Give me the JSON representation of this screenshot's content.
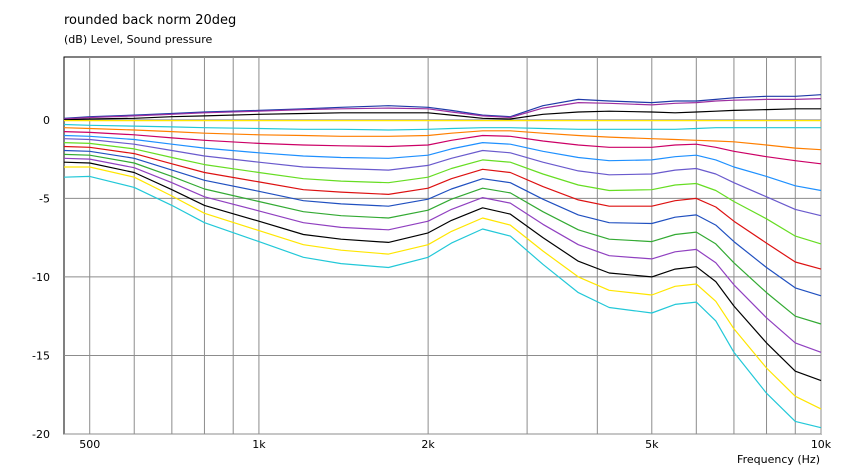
{
  "chart_data": {
    "type": "line",
    "title": "rounded back norm 20deg",
    "ylabel": "(dB)  Level, Sound pressure",
    "xlabel": "Frequency  (Hz)",
    "x_scale": "log",
    "xlim": [
      450,
      10000
    ],
    "ylim": [
      -20,
      4
    ],
    "x_ticks": [
      {
        "value": 500,
        "label": "500"
      },
      {
        "value": 1000,
        "label": "1k"
      },
      {
        "value": 2000,
        "label": "2k"
      },
      {
        "value": 5000,
        "label": "5k"
      },
      {
        "value": 10000,
        "label": "10k"
      }
    ],
    "y_ticks": [
      {
        "value": 0,
        "label": "0"
      },
      {
        "value": -5,
        "label": "-5"
      },
      {
        "value": -10,
        "label": "-10"
      },
      {
        "value": -15,
        "label": "-15"
      },
      {
        "value": -20,
        "label": "-20"
      }
    ],
    "x_grid": [
      500,
      600,
      700,
      800,
      900,
      1000,
      2000,
      3000,
      4000,
      5000,
      6000,
      7000,
      8000,
      9000,
      10000
    ],
    "grid": true,
    "x": [
      450,
      500,
      600,
      700,
      800,
      1000,
      1200,
      1400,
      1700,
      2000,
      2200,
      2500,
      2800,
      3200,
      3700,
      4200,
      5000,
      5500,
      6000,
      6500,
      7000,
      8000,
      9000,
      10000
    ],
    "series": [
      {
        "color": "#1f3aa8",
        "values": [
          0.1,
          0.2,
          0.3,
          0.4,
          0.5,
          0.6,
          0.7,
          0.8,
          0.9,
          0.8,
          0.6,
          0.3,
          0.2,
          0.9,
          1.3,
          1.2,
          1.1,
          1.2,
          1.2,
          1.3,
          1.4,
          1.5,
          1.5,
          1.6
        ]
      },
      {
        "color": "#9c2fa0",
        "values": [
          0.05,
          0.15,
          0.25,
          0.35,
          0.45,
          0.55,
          0.65,
          0.7,
          0.75,
          0.7,
          0.5,
          0.25,
          0.15,
          0.75,
          1.1,
          1.05,
          0.95,
          1.05,
          1.1,
          1.2,
          1.25,
          1.3,
          1.3,
          1.35
        ]
      },
      {
        "color": "#000000",
        "values": [
          0.0,
          0.05,
          0.1,
          0.2,
          0.25,
          0.35,
          0.4,
          0.45,
          0.45,
          0.45,
          0.3,
          0.1,
          0.05,
          0.35,
          0.5,
          0.55,
          0.5,
          0.45,
          0.5,
          0.55,
          0.6,
          0.65,
          0.7,
          0.7
        ]
      },
      {
        "color": "#ffe600",
        "values": [
          -0.05,
          -0.05,
          -0.05,
          -0.05,
          -0.05,
          -0.05,
          -0.05,
          -0.05,
          -0.05,
          -0.05,
          -0.05,
          -0.05,
          -0.05,
          -0.05,
          -0.05,
          -0.05,
          -0.05,
          -0.05,
          -0.05,
          -0.05,
          -0.05,
          -0.05,
          -0.05,
          -0.05
        ]
      },
      {
        "color": "#22c8d8",
        "values": [
          -0.3,
          -0.35,
          -0.4,
          -0.45,
          -0.5,
          -0.55,
          -0.6,
          -0.6,
          -0.65,
          -0.6,
          -0.55,
          -0.5,
          -0.5,
          -0.55,
          -0.6,
          -0.6,
          -0.6,
          -0.6,
          -0.55,
          -0.5,
          -0.5,
          -0.5,
          -0.5,
          -0.5
        ]
      },
      {
        "color": "#ff7f00",
        "values": [
          -0.5,
          -0.55,
          -0.65,
          -0.75,
          -0.85,
          -0.95,
          -1.0,
          -1.05,
          -1.05,
          -1.0,
          -0.85,
          -0.7,
          -0.7,
          -0.85,
          -1.0,
          -1.1,
          -1.2,
          -1.25,
          -1.3,
          -1.35,
          -1.4,
          -1.6,
          -1.8,
          -1.9
        ]
      },
      {
        "color": "#cc0066",
        "values": [
          -0.75,
          -0.8,
          -0.95,
          -1.15,
          -1.3,
          -1.5,
          -1.6,
          -1.65,
          -1.7,
          -1.6,
          -1.3,
          -1.0,
          -1.05,
          -1.35,
          -1.6,
          -1.75,
          -1.75,
          -1.6,
          -1.55,
          -1.75,
          -2.0,
          -2.35,
          -2.6,
          -2.8
        ]
      },
      {
        "color": "#1e90ff",
        "values": [
          -1.0,
          -1.05,
          -1.25,
          -1.55,
          -1.8,
          -2.1,
          -2.3,
          -2.4,
          -2.45,
          -2.25,
          -1.85,
          -1.45,
          -1.55,
          -2.0,
          -2.4,
          -2.6,
          -2.55,
          -2.35,
          -2.25,
          -2.55,
          -3.0,
          -3.6,
          -4.2,
          -4.5
        ]
      },
      {
        "color": "#6a5acd",
        "values": [
          -1.2,
          -1.25,
          -1.55,
          -1.95,
          -2.3,
          -2.7,
          -3.0,
          -3.1,
          -3.2,
          -2.9,
          -2.45,
          -1.95,
          -2.1,
          -2.7,
          -3.25,
          -3.5,
          -3.45,
          -3.2,
          -3.1,
          -3.45,
          -4.0,
          -4.9,
          -5.7,
          -6.1
        ]
      },
      {
        "color": "#66dd22",
        "values": [
          -1.45,
          -1.5,
          -1.85,
          -2.4,
          -2.85,
          -3.35,
          -3.75,
          -3.9,
          -4.0,
          -3.65,
          -3.1,
          -2.55,
          -2.7,
          -3.45,
          -4.15,
          -4.5,
          -4.45,
          -4.15,
          -4.05,
          -4.5,
          -5.2,
          -6.3,
          -7.4,
          -7.9
        ]
      },
      {
        "color": "#dd1111",
        "values": [
          -1.7,
          -1.75,
          -2.15,
          -2.8,
          -3.35,
          -3.95,
          -4.45,
          -4.6,
          -4.75,
          -4.35,
          -3.75,
          -3.15,
          -3.35,
          -4.25,
          -5.1,
          -5.5,
          -5.5,
          -5.15,
          -5.0,
          -5.55,
          -6.45,
          -7.85,
          -9.05,
          -9.5
        ]
      },
      {
        "color": "#2050c0",
        "values": [
          -1.95,
          -2.0,
          -2.45,
          -3.2,
          -3.85,
          -4.55,
          -5.15,
          -5.35,
          -5.5,
          -5.05,
          -4.4,
          -3.75,
          -4.0,
          -5.05,
          -6.05,
          -6.55,
          -6.6,
          -6.2,
          -6.05,
          -6.7,
          -7.75,
          -9.4,
          -10.7,
          -11.2
        ]
      },
      {
        "color": "#33aa33",
        "values": [
          -2.2,
          -2.25,
          -2.75,
          -3.6,
          -4.4,
          -5.2,
          -5.85,
          -6.1,
          -6.25,
          -5.75,
          -5.05,
          -4.35,
          -4.65,
          -5.85,
          -7.0,
          -7.6,
          -7.75,
          -7.3,
          -7.15,
          -7.9,
          -9.1,
          -11.0,
          -12.5,
          -13.0
        ]
      },
      {
        "color": "#9040c0",
        "values": [
          -2.45,
          -2.5,
          -3.05,
          -4.0,
          -4.9,
          -5.8,
          -6.55,
          -6.85,
          -7.0,
          -6.45,
          -5.7,
          -4.95,
          -5.3,
          -6.65,
          -7.95,
          -8.65,
          -8.85,
          -8.4,
          -8.25,
          -9.1,
          -10.5,
          -12.6,
          -14.2,
          -14.8
        ]
      },
      {
        "color": "#000000",
        "values": [
          -2.7,
          -2.75,
          -3.35,
          -4.45,
          -5.45,
          -6.45,
          -7.3,
          -7.6,
          -7.8,
          -7.2,
          -6.4,
          -5.6,
          -6.0,
          -7.5,
          -9.0,
          -9.75,
          -10.0,
          -9.5,
          -9.35,
          -10.3,
          -11.85,
          -14.2,
          -16.0,
          -16.6
        ]
      },
      {
        "color": "#ffe600",
        "values": [
          -3.0,
          -3.0,
          -3.65,
          -4.85,
          -5.95,
          -7.05,
          -7.95,
          -8.3,
          -8.55,
          -7.95,
          -7.1,
          -6.25,
          -6.7,
          -8.35,
          -10.0,
          -10.85,
          -11.15,
          -10.6,
          -10.45,
          -11.55,
          -13.3,
          -15.8,
          -17.6,
          -18.4
        ]
      },
      {
        "color": "#22c8d8",
        "values": [
          -3.65,
          -3.6,
          -4.3,
          -5.45,
          -6.55,
          -7.75,
          -8.75,
          -9.15,
          -9.4,
          -8.75,
          -7.85,
          -6.95,
          -7.4,
          -9.2,
          -11.0,
          -11.95,
          -12.3,
          -11.75,
          -11.6,
          -12.8,
          -14.8,
          -17.4,
          -19.2,
          -19.6
        ]
      }
    ]
  }
}
